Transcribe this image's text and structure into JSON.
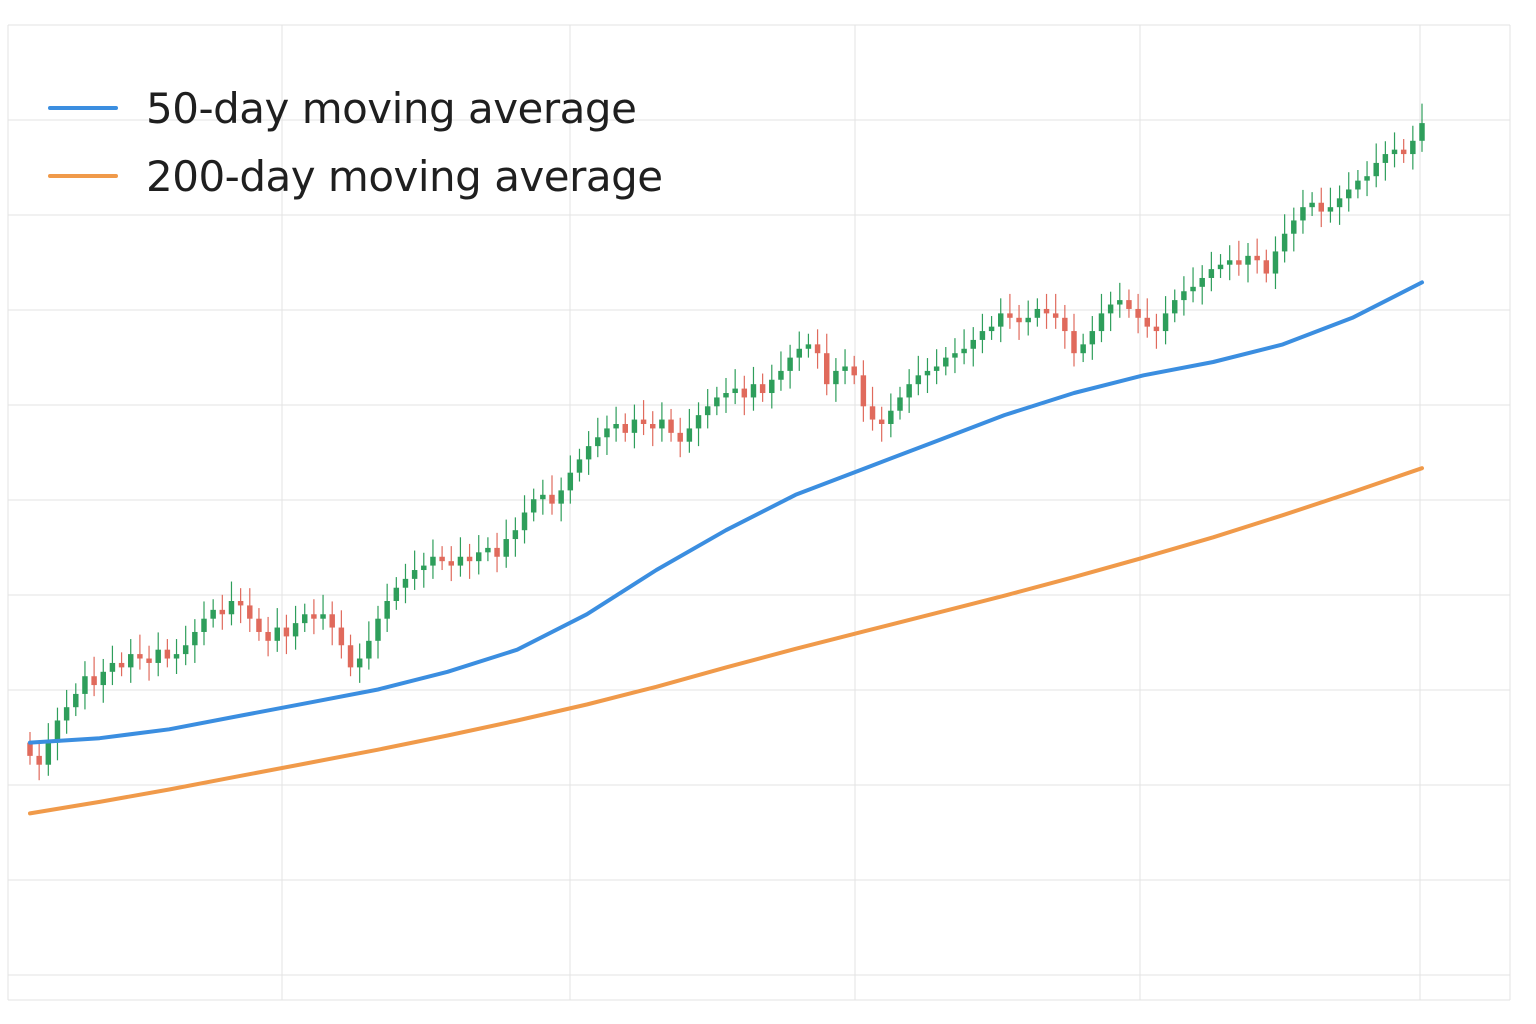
{
  "chart_data": {
    "type": "line",
    "subtype": "candlestick-with-moving-averages",
    "title": "",
    "xlabel": "",
    "ylabel": "",
    "grid": true,
    "legend_placement": "top-left",
    "colors": {
      "up": "#2e9e5b",
      "down": "#e06a5c",
      "ma50": "#3b8ee0",
      "ma200": "#f09a4a",
      "grid": "#e3e3e3"
    },
    "xlim": [
      0,
      200
    ],
    "ylim": [
      0,
      100
    ],
    "candles_close": [
      22.5,
      21.5,
      24.0,
      26.5,
      28.0,
      29.5,
      31.5,
      30.5,
      32.0,
      33.0,
      32.5,
      34.0,
      33.5,
      33.0,
      34.5,
      33.5,
      34.0,
      35.0,
      36.5,
      38.0,
      39.0,
      38.5,
      40.0,
      39.5,
      38.0,
      36.5,
      35.5,
      37.0,
      36.0,
      37.5,
      38.5,
      38.0,
      38.5,
      37.0,
      35.0,
      32.5,
      33.5,
      35.5,
      38.0,
      40.0,
      41.5,
      42.5,
      43.5,
      44.0,
      45.0,
      44.5,
      44.0,
      45.0,
      44.5,
      45.5,
      46.0,
      45.0,
      47.0,
      48.0,
      50.0,
      51.5,
      52.0,
      51.0,
      52.5,
      54.5,
      56.0,
      57.5,
      58.5,
      59.5,
      60.0,
      59.0,
      60.5,
      60.0,
      59.5,
      60.5,
      59.0,
      58.0,
      59.5,
      61.0,
      62.0,
      63.0,
      63.5,
      64.0,
      63.0,
      64.5,
      63.5,
      65.0,
      66.0,
      67.5,
      68.5,
      69.0,
      68.0,
      64.5,
      66.0,
      66.5,
      65.5,
      62.0,
      60.5,
      60.0,
      61.5,
      63.0,
      64.5,
      65.5,
      66.0,
      66.5,
      67.5,
      68.0,
      68.5,
      69.5,
      70.5,
      71.0,
      72.5,
      72.0,
      71.5,
      72.0,
      73.0,
      72.5,
      72.0,
      70.5,
      68.0,
      69.0,
      70.5,
      72.5,
      73.5,
      74.0,
      73.0,
      72.0,
      71.0,
      70.5,
      72.5,
      74.0,
      75.0,
      75.5,
      76.5,
      77.5,
      78.0,
      78.5,
      78.0,
      79.0,
      78.5,
      77.0,
      79.5,
      81.5,
      83.0,
      84.5,
      85.0,
      84.0,
      84.5,
      85.5,
      86.5,
      87.5,
      88.0,
      89.5,
      90.5,
      91.0,
      90.5,
      92.0,
      94.0
    ],
    "series": [
      {
        "name": "50-day moving average",
        "x": [
          0,
          10,
          20,
          30,
          40,
          50,
          60,
          70,
          80,
          90,
          100,
          110,
          120,
          130,
          140,
          150,
          160,
          170,
          180,
          190,
          200
        ],
        "values": [
          24.0,
          24.5,
          25.5,
          27.0,
          28.5,
          30.0,
          32.0,
          34.5,
          38.5,
          43.5,
          48.0,
          52.0,
          55.0,
          58.0,
          61.0,
          63.5,
          65.5,
          67.0,
          69.0,
          72.0,
          76.0
        ]
      },
      {
        "name": "200-day moving average",
        "x": [
          0,
          10,
          20,
          30,
          40,
          50,
          60,
          70,
          80,
          90,
          100,
          110,
          120,
          130,
          140,
          150,
          160,
          170,
          180,
          190,
          200
        ],
        "values": [
          16.0,
          17.3,
          18.7,
          20.2,
          21.7,
          23.2,
          24.8,
          26.5,
          28.3,
          30.3,
          32.5,
          34.6,
          36.6,
          38.6,
          40.6,
          42.7,
          44.9,
          47.2,
          49.7,
          52.3,
          55.0
        ]
      }
    ]
  }
}
